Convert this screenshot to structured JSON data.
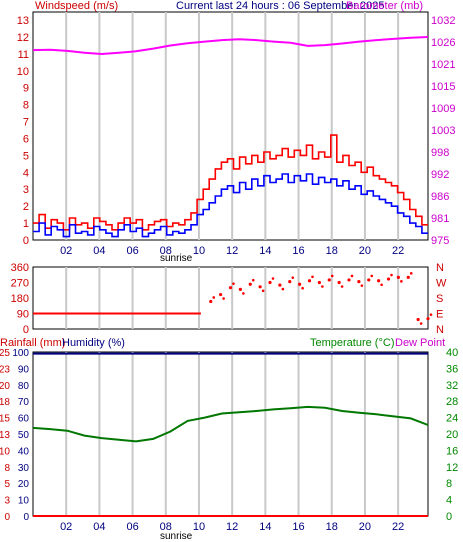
{
  "header": {
    "wind_title": "Windspeed (m/s)",
    "center_title": "Current last 24 hours : 06 September 2025",
    "baro_title": "Barometer (mb)",
    "rain_title": "Rainfall (mm)",
    "humidity_title": "Humidity (%)",
    "temp_title": "Temperature (°C)",
    "dew_title": "Dew Point",
    "sunrise_label": "sunrise"
  },
  "colors": {
    "wind_avg": "#0000ff",
    "wind_gust": "#ff0000",
    "barometer": "#ff00ff",
    "direction": "#ff0000",
    "humidity": "#000080",
    "temperature": "#007700",
    "rain": "#ff0000",
    "left_axis_text": "#cc0000",
    "right_axis_text": "#008800"
  },
  "chart_data": [
    {
      "type": "line",
      "title": "Windspeed (m/s) / Barometer (mb)",
      "xlabel": "",
      "x_ticks": [
        "02",
        "04",
        "06",
        "08",
        "10",
        "12",
        "14",
        "16",
        "18",
        "20",
        "22"
      ],
      "x_range_hours": [
        0,
        23.8
      ],
      "left_ticks": [
        "0",
        "1",
        "2",
        "3",
        "4",
        "5",
        "6",
        "7",
        "8",
        "9",
        "10",
        "11",
        "12",
        "13"
      ],
      "right_ticks": [
        "975",
        "981",
        "986",
        "992",
        "998",
        "1003",
        "1009",
        "1015",
        "1021",
        "1026",
        "1032"
      ],
      "ylim_left": [
        0,
        13
      ],
      "ylim_right": [
        975,
        1032
      ],
      "series": [
        {
          "name": "Windspeed",
          "color": "#0000ff",
          "values": [
            0.5,
            1.0,
            0.3,
            0.8,
            0.6,
            0.2,
            0.9,
            0.4,
            0.5,
            0.3,
            0.8,
            0.6,
            0.4,
            0.2,
            0.6,
            0.9,
            0.5,
            0.7,
            0.2,
            0.4,
            0.6,
            0.8,
            0.3,
            0.5,
            0.4,
            0.6,
            0.9,
            1.5,
            1.8,
            2.2,
            2.6,
            3.0,
            3.2,
            2.8,
            3.4,
            3.0,
            3.6,
            3.2,
            3.8,
            3.4,
            3.6,
            3.9,
            3.4,
            3.8,
            3.5,
            3.9,
            3.3,
            3.7,
            3.4,
            3.6,
            3.2,
            3.5,
            3.0,
            3.2,
            2.7,
            2.9,
            2.6,
            2.4,
            2.2,
            2.0,
            1.6,
            1.4,
            1.0,
            0.8,
            0.4
          ]
        },
        {
          "name": "Gust",
          "color": "#ff0000",
          "values": [
            1.0,
            1.5,
            0.7,
            1.2,
            1.0,
            0.6,
            1.3,
            0.9,
            1.0,
            0.7,
            1.3,
            1.1,
            0.9,
            0.6,
            1.0,
            1.3,
            1.0,
            1.2,
            0.6,
            0.9,
            1.1,
            1.2,
            0.8,
            1.0,
            0.9,
            1.2,
            1.6,
            2.4,
            3.0,
            3.6,
            4.2,
            4.6,
            4.8,
            4.2,
            4.9,
            4.5,
            5.0,
            4.6,
            5.2,
            4.8,
            5.0,
            5.4,
            4.9,
            5.3,
            5.0,
            5.6,
            4.8,
            5.2,
            4.9,
            6.2,
            4.6,
            5.0,
            4.4,
            4.6,
            4.0,
            4.3,
            3.8,
            3.6,
            3.4,
            3.2,
            2.8,
            2.4,
            1.8,
            1.4,
            0.9
          ]
        },
        {
          "name": "Barometer",
          "color": "#ff00ff",
          "axis": "right",
          "values": [
            1024.2,
            1024.3,
            1024.0,
            1023.5,
            1023.2,
            1023.5,
            1023.9,
            1024.6,
            1025.4,
            1026.0,
            1026.4,
            1026.8,
            1027.0,
            1026.8,
            1026.4,
            1026.1,
            1025.3,
            1025.5,
            1025.9,
            1026.4,
            1026.8,
            1027.1,
            1027.4,
            1027.6
          ]
        }
      ]
    },
    {
      "type": "scatter",
      "title": "Wind direction",
      "left_ticks": [
        "0",
        "90",
        "180",
        "270",
        "360"
      ],
      "right_ticks": [
        "N",
        "E",
        "S",
        "W",
        "N"
      ],
      "ylim": [
        0,
        360
      ],
      "series": [
        {
          "name": "Direction",
          "color": "#ff0000",
          "values": [
            90,
            90,
            90,
            90,
            90,
            90,
            90,
            90,
            90,
            90,
            90,
            90,
            90,
            90,
            90,
            90,
            90,
            90,
            160,
            200,
            240,
            230,
            260,
            245,
            270,
            255,
            275,
            260,
            280,
            270,
            285,
            270,
            285,
            275,
            285,
            280,
            290,
            300,
            300,
            55,
            60
          ]
        }
      ]
    },
    {
      "type": "line",
      "title": "Rainfall / Humidity / Temperature",
      "x_ticks": [
        "02",
        "04",
        "06",
        "08",
        "10",
        "12",
        "14",
        "16",
        "18",
        "20",
        "22"
      ],
      "left_ticks_rain": [
        "0",
        "3",
        "5",
        "8",
        "10",
        "13",
        "15",
        "18",
        "20",
        "23",
        "25"
      ],
      "left_ticks_humidity": [
        "0",
        "10",
        "20",
        "30",
        "40",
        "50",
        "60",
        "70",
        "80",
        "90",
        "100"
      ],
      "right_ticks": [
        "0",
        "4",
        "8",
        "12",
        "16",
        "20",
        "24",
        "28",
        "32",
        "36",
        "40"
      ],
      "ylim_left": [
        0,
        100
      ],
      "ylim_right": [
        0,
        40
      ],
      "series": [
        {
          "name": "Humidity",
          "color": "#000080",
          "values": [
            99,
            99,
            99,
            99,
            99,
            99,
            99,
            99,
            99,
            99,
            99,
            99,
            99,
            99,
            99,
            99,
            99,
            99,
            99,
            99,
            99,
            99,
            99,
            99
          ]
        },
        {
          "name": "Temperature",
          "color": "#007700",
          "values": [
            21.5,
            21.2,
            20.8,
            19.6,
            19.0,
            18.6,
            18.2,
            18.8,
            20.6,
            23.2,
            24.0,
            25.0,
            25.3,
            25.6,
            26.0,
            26.3,
            26.6,
            26.4,
            25.6,
            25.2,
            24.8,
            24.3,
            23.8,
            22.2
          ]
        },
        {
          "name": "Rainfall",
          "color": "#ff0000",
          "values": [
            0,
            0,
            0,
            0,
            0,
            0,
            0,
            0,
            0,
            0,
            0,
            0,
            0,
            0,
            0,
            0,
            0,
            0,
            0,
            0,
            0,
            0,
            0,
            0
          ]
        }
      ]
    }
  ]
}
